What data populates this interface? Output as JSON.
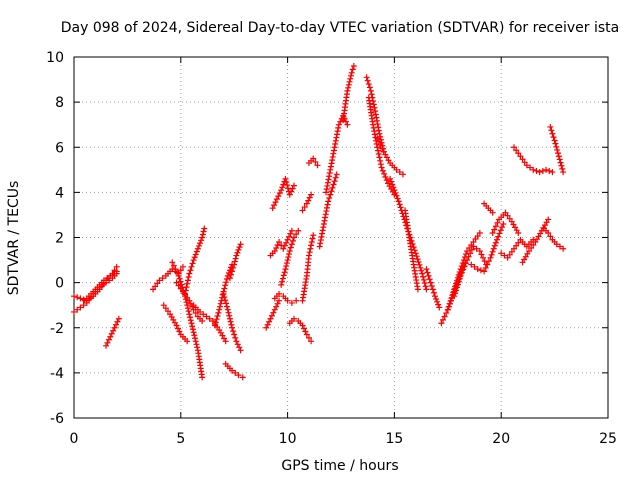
{
  "chart_data": {
    "type": "scatter",
    "title": "Day 098 of 2024, Sidereal Day-to-day VTEC variation (SDTVAR) for receiver ista",
    "xlabel": "GPS time / hours",
    "ylabel": "SDTVAR / TECUs",
    "xlim": [
      0,
      25
    ],
    "ylim": [
      -6,
      10
    ],
    "xticks": [
      "0",
      "5",
      "10",
      "15",
      "20",
      "25"
    ],
    "yticks": [
      "-6",
      "-4",
      "-2",
      "0",
      "2",
      "4",
      "6",
      "8",
      "10"
    ],
    "grid": true,
    "marker": "plus",
    "color": "#ff0000",
    "series": [
      {
        "x": [
          0.0,
          0.3,
          0.6,
          0.9,
          1.2,
          1.5,
          1.8,
          2.0
        ],
        "y": [
          -0.6,
          -0.7,
          -0.8,
          -0.6,
          -0.3,
          0.1,
          0.4,
          0.7
        ]
      },
      {
        "x": [
          0.0,
          0.3,
          0.6,
          0.9,
          1.2,
          1.5,
          1.8,
          2.0
        ],
        "y": [
          -1.3,
          -1.1,
          -0.9,
          -0.5,
          -0.2,
          0.0,
          0.2,
          0.4
        ]
      },
      {
        "x": [
          0.5,
          0.8,
          1.1,
          1.4,
          1.7,
          2.0
        ],
        "y": [
          -0.8,
          -0.5,
          -0.2,
          0.1,
          0.3,
          0.5
        ]
      },
      {
        "x": [
          1.5,
          1.7,
          1.9,
          2.1
        ],
        "y": [
          -2.8,
          -2.4,
          -2.0,
          -1.6
        ]
      },
      {
        "x": [
          3.7,
          4.0,
          4.3,
          4.6,
          4.9,
          5.1
        ],
        "y": [
          -0.3,
          0.1,
          0.3,
          0.6,
          0.4,
          0.7
        ]
      },
      {
        "x": [
          4.2,
          4.5,
          4.8,
          5.0,
          5.3
        ],
        "y": [
          -1.0,
          -1.4,
          -1.9,
          -2.3,
          -2.6
        ]
      },
      {
        "x": [
          4.6,
          4.9,
          5.2,
          5.5,
          5.8,
          6.0
        ],
        "y": [
          0.9,
          0.3,
          -0.6,
          -1.8,
          -3.0,
          -4.2
        ]
      },
      {
        "x": [
          4.8,
          5.1,
          5.4,
          5.6,
          5.8,
          6.0
        ],
        "y": [
          0.0,
          -0.4,
          -0.8,
          -1.2,
          -1.5,
          -1.7
        ]
      },
      {
        "x": [
          5.2,
          5.4,
          5.6,
          5.8,
          6.0,
          6.1
        ],
        "y": [
          -0.5,
          0.4,
          1.0,
          1.5,
          2.0,
          2.4
        ]
      },
      {
        "x": [
          5.6,
          5.9,
          6.2,
          6.5,
          6.8,
          7.1
        ],
        "y": [
          -1.0,
          -1.3,
          -1.5,
          -1.7,
          -2.1,
          -2.6
        ]
      },
      {
        "x": [
          6.6,
          6.8,
          7.0,
          7.2,
          7.4
        ],
        "y": [
          -1.9,
          -1.2,
          -0.4,
          0.3,
          0.8
        ]
      },
      {
        "x": [
          7.0,
          7.2,
          7.4,
          7.6,
          7.8
        ],
        "y": [
          -0.5,
          -1.2,
          -2.0,
          -2.6,
          -3.0
        ]
      },
      {
        "x": [
          7.3,
          7.5,
          7.6,
          7.8
        ],
        "y": [
          0.2,
          0.8,
          1.2,
          1.7
        ]
      },
      {
        "x": [
          7.1,
          7.4,
          7.7,
          7.9
        ],
        "y": [
          -3.6,
          -3.9,
          -4.1,
          -4.2
        ]
      },
      {
        "x": [
          9.0,
          9.2,
          9.4,
          9.6
        ],
        "y": [
          -2.0,
          -1.6,
          -1.2,
          -0.8
        ]
      },
      {
        "x": [
          9.2,
          9.4,
          9.6,
          9.8,
          10.0,
          10.2
        ],
        "y": [
          1.2,
          1.4,
          1.8,
          1.5,
          1.9,
          2.3
        ]
      },
      {
        "x": [
          9.4,
          9.6,
          9.8,
          10.0,
          10.2,
          10.4
        ],
        "y": [
          -0.7,
          -0.5,
          -0.6,
          -0.8,
          -0.9,
          -0.8
        ]
      },
      {
        "x": [
          9.7,
          9.9,
          10.1,
          10.3,
          10.5
        ],
        "y": [
          -0.1,
          0.6,
          1.4,
          2.0,
          2.3
        ]
      },
      {
        "x": [
          9.3,
          9.5,
          9.7,
          9.9,
          10.1,
          10.3
        ],
        "y": [
          3.3,
          3.7,
          4.1,
          4.6,
          3.9,
          4.3
        ]
      },
      {
        "x": [
          10.1,
          10.3,
          10.5,
          10.7,
          10.9,
          11.1
        ],
        "y": [
          -1.8,
          -1.6,
          -1.7,
          -1.9,
          -2.3,
          -2.6
        ]
      },
      {
        "x": [
          10.7,
          10.9,
          11.0,
          11.2
        ],
        "y": [
          -0.8,
          0.3,
          1.2,
          2.1
        ]
      },
      {
        "x": [
          10.7,
          10.9,
          11.1
        ],
        "y": [
          3.2,
          3.5,
          3.9
        ]
      },
      {
        "x": [
          11.0,
          11.2,
          11.4
        ],
        "y": [
          5.3,
          5.5,
          5.2
        ]
      },
      {
        "x": [
          11.5,
          11.7,
          11.9,
          12.1,
          12.3
        ],
        "y": [
          1.6,
          2.6,
          3.6,
          4.2,
          4.8
        ]
      },
      {
        "x": [
          11.8,
          12.0,
          12.2,
          12.4,
          12.6,
          12.8
        ],
        "y": [
          4.0,
          5.0,
          6.0,
          7.0,
          7.4,
          7.0
        ]
      },
      {
        "x": [
          12.6,
          12.8,
          13.0,
          13.1
        ],
        "y": [
          7.2,
          8.5,
          9.3,
          9.6
        ]
      },
      {
        "x": [
          13.7,
          13.9,
          14.1,
          14.3,
          14.5
        ],
        "y": [
          9.1,
          8.5,
          7.6,
          6.6,
          5.8
        ]
      },
      {
        "x": [
          13.8,
          14.0,
          14.2,
          14.4,
          14.7,
          15.0
        ],
        "y": [
          8.2,
          7.0,
          6.0,
          5.1,
          4.4,
          3.9
        ]
      },
      {
        "x": [
          14.2,
          14.5,
          14.8,
          15.1,
          15.4
        ],
        "y": [
          6.4,
          5.8,
          5.3,
          5.0,
          4.8
        ]
      },
      {
        "x": [
          14.8,
          15.2,
          15.6,
          16.0,
          16.3,
          16.5
        ],
        "y": [
          4.6,
          3.6,
          2.4,
          1.3,
          0.4,
          -0.3
        ]
      },
      {
        "x": [
          15.5,
          15.7,
          15.9,
          16.1
        ],
        "y": [
          3.2,
          2.0,
          0.8,
          -0.3
        ]
      },
      {
        "x": [
          16.5,
          16.7,
          16.9,
          17.1
        ],
        "y": [
          0.6,
          0.0,
          -0.6,
          -1.1
        ]
      },
      {
        "x": [
          17.2,
          17.5,
          17.8,
          18.1,
          18.4
        ],
        "y": [
          -1.8,
          -1.2,
          -0.4,
          0.4,
          1.0
        ]
      },
      {
        "x": [
          17.5,
          17.8,
          18.1,
          18.4,
          18.7,
          19.0
        ],
        "y": [
          -1.2,
          -0.3,
          0.6,
          1.4,
          1.8,
          2.2
        ]
      },
      {
        "x": [
          17.8,
          18.1,
          18.4,
          18.7,
          19.0,
          19.3
        ],
        "y": [
          -0.6,
          0.3,
          1.0,
          1.6,
          1.4,
          0.8
        ]
      },
      {
        "x": [
          18.6,
          18.9,
          19.2,
          19.5,
          19.8,
          20.1
        ],
        "y": [
          0.8,
          0.6,
          0.5,
          1.1,
          1.9,
          2.6
        ]
      },
      {
        "x": [
          19.2,
          19.4,
          19.6
        ],
        "y": [
          3.5,
          3.3,
          3.1
        ]
      },
      {
        "x": [
          19.6,
          19.9,
          20.2,
          20.5,
          20.8
        ],
        "y": [
          2.2,
          2.8,
          3.1,
          2.7,
          2.2
        ]
      },
      {
        "x": [
          20.0,
          20.3,
          20.6,
          20.9,
          21.2,
          21.5
        ],
        "y": [
          1.3,
          1.1,
          1.5,
          1.9,
          1.6,
          1.9
        ]
      },
      {
        "x": [
          21.0,
          21.3,
          21.6,
          21.9,
          22.2
        ],
        "y": [
          0.9,
          1.4,
          1.8,
          2.3,
          2.8
        ]
      },
      {
        "x": [
          22.0,
          22.2,
          22.4,
          22.6,
          22.9
        ],
        "y": [
          2.4,
          2.2,
          1.9,
          1.7,
          1.5
        ]
      },
      {
        "x": [
          20.6,
          20.9,
          21.2,
          21.5,
          21.8,
          22.1,
          22.4
        ],
        "y": [
          6.0,
          5.6,
          5.2,
          5.0,
          4.9,
          5.0,
          4.9
        ]
      },
      {
        "x": [
          22.3,
          22.5,
          22.7,
          22.9
        ],
        "y": [
          6.9,
          6.3,
          5.6,
          4.9
        ]
      }
    ]
  }
}
